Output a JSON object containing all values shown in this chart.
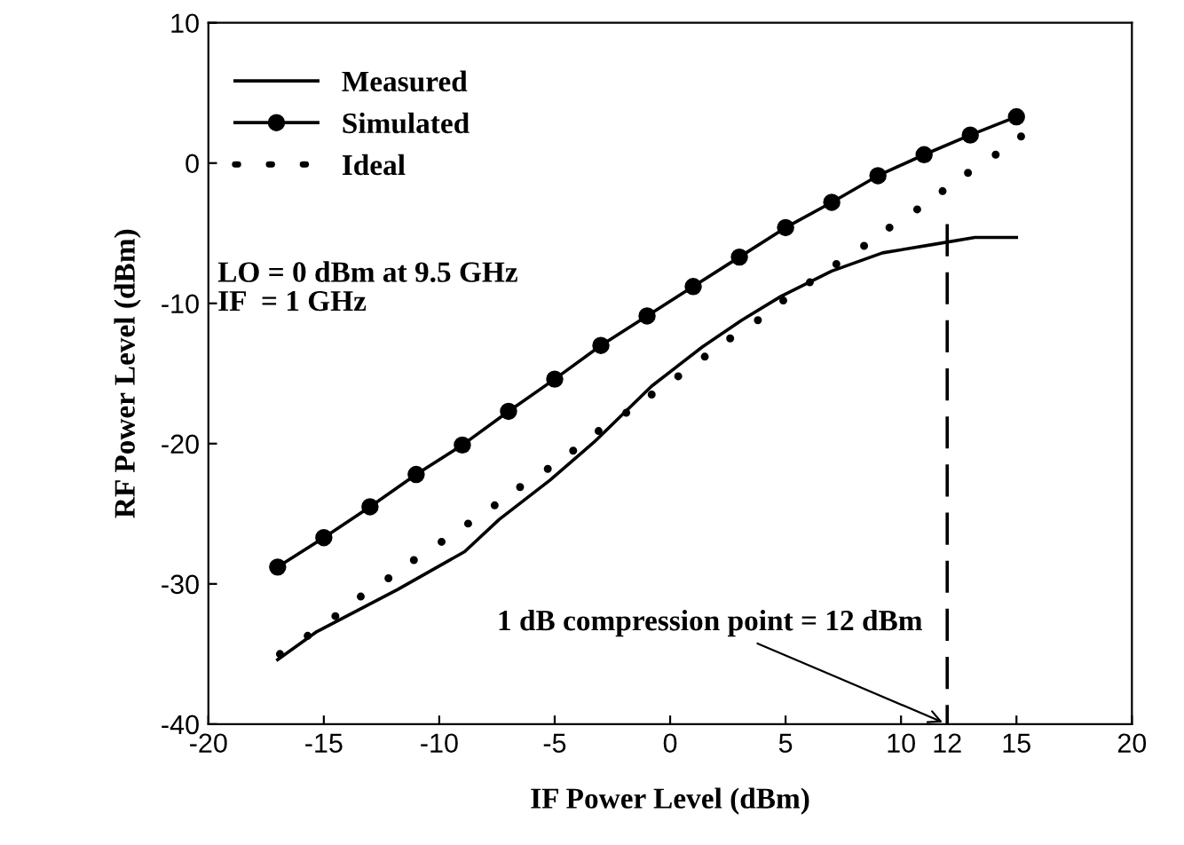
{
  "chart_data": {
    "type": "line",
    "xlabel": "IF Power Level (dBm)",
    "ylabel": "RF Power Level (dBm)",
    "xlim": [
      -20,
      20
    ],
    "ylim": [
      -40,
      10
    ],
    "xticks": [
      -20,
      -15,
      -10,
      -5,
      0,
      5,
      10,
      12,
      15,
      20
    ],
    "yticks": [
      -40,
      -30,
      -20,
      -10,
      0,
      10
    ],
    "grid": false,
    "legend": "top left",
    "series": [
      {
        "name": "Measured",
        "color": "#000000",
        "marker": "none",
        "line_style": "solid",
        "x": [
          -17,
          -15.3,
          -11.8,
          -8.9,
          -7.4,
          -5.2,
          -3.3,
          -0.8,
          1.4,
          3.1,
          4.8,
          7.0,
          9.2,
          11.4,
          13.2,
          15
        ],
        "values": [
          -35.4,
          -33.4,
          -30.4,
          -27.7,
          -25.4,
          -22.6,
          -19.9,
          -15.9,
          -13.1,
          -11.2,
          -9.5,
          -7.7,
          -6.4,
          -5.8,
          -5.3,
          -5.3
        ]
      },
      {
        "name": "Simulated",
        "color": "#000000",
        "marker": "circle",
        "line_style": "solid",
        "x": [
          -17,
          -15,
          -13,
          -11,
          -9,
          -7,
          -5,
          -3,
          -1,
          1,
          3,
          5,
          7,
          9,
          11,
          13,
          15
        ],
        "values": [
          -28.8,
          -26.7,
          -24.5,
          -22.2,
          -20.1,
          -17.7,
          -15.4,
          -13.0,
          -10.9,
          -8.8,
          -6.7,
          -4.6,
          -2.8,
          -0.9,
          0.6,
          2.0,
          3.3
        ]
      },
      {
        "name": "Ideal",
        "type": "scatter",
        "color": "#000000",
        "marker": "circle",
        "x": [
          -16.9,
          -15.7,
          -14.5,
          -13.4,
          -12.2,
          -11.1,
          -9.9,
          -8.75,
          -7.6,
          -6.5,
          -5.3,
          -4.2,
          -3.1,
          -1.9,
          -0.8,
          0.35,
          1.5,
          2.6,
          3.8,
          4.9,
          6.05,
          7.2,
          8.4,
          9.5,
          10.7,
          11.8,
          12.9,
          14.1,
          15.2
        ],
        "values": [
          -35.0,
          -33.7,
          -32.3,
          -30.9,
          -29.6,
          -28.3,
          -27.0,
          -25.7,
          -24.4,
          -23.1,
          -21.8,
          -20.5,
          -19.1,
          -17.8,
          -16.5,
          -15.2,
          -13.8,
          -12.5,
          -11.2,
          -9.8,
          -8.5,
          -7.2,
          -5.9,
          -4.6,
          -3.3,
          -2.0,
          -0.7,
          0.6,
          1.9
        ]
      }
    ],
    "ref_lines": [
      {
        "axis": "x",
        "value": 12,
        "color": "#000000",
        "line_style": "dashed"
      }
    ],
    "annotations": [
      "LO = 0 dBm at 9.5 GHz\nIF  = 1 GHz",
      {
        "text": "1 dB compression point = 12 dBm",
        "x": 12,
        "y": -40
      }
    ]
  }
}
